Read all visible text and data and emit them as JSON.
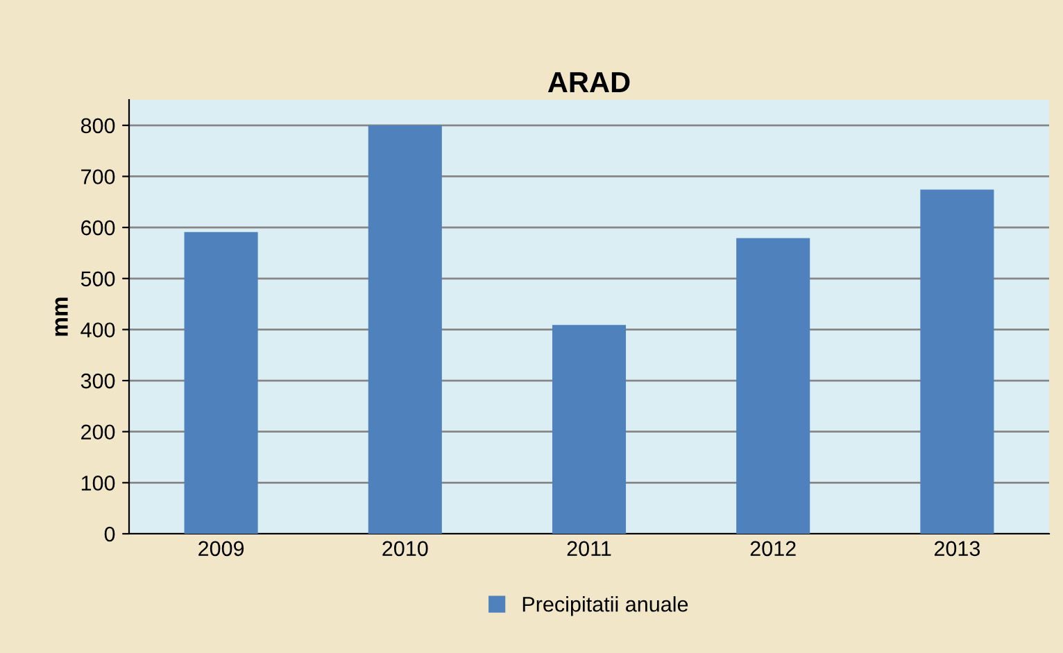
{
  "chart_data": {
    "type": "bar",
    "title": "ARAD",
    "ylabel": "mm",
    "categories": [
      "2009",
      "2010",
      "2011",
      "2012",
      "2013"
    ],
    "series": [
      {
        "name": "Precipitatii anuale",
        "color": "#4f81bd",
        "values": [
          591,
          800,
          409,
          579,
          674
        ]
      }
    ],
    "ylim": [
      0,
      850
    ],
    "yticks": [
      0,
      100,
      200,
      300,
      400,
      500,
      600,
      700,
      800
    ],
    "grid": "y",
    "legend": "bottom"
  }
}
